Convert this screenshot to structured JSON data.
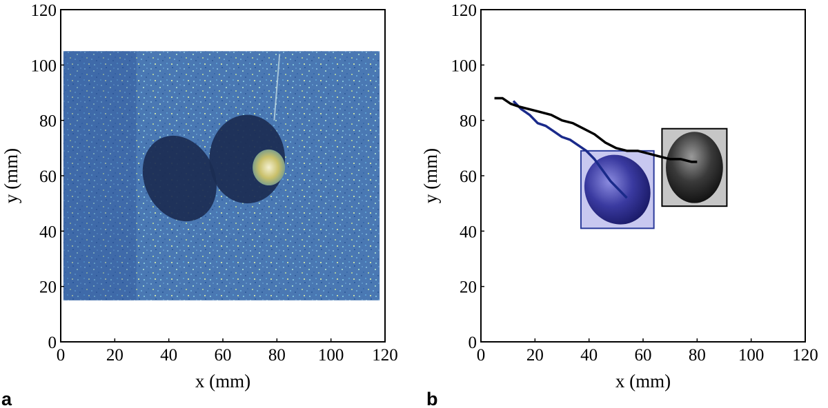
{
  "chart_data": [
    {
      "panel_label": "a",
      "type": "image",
      "xlabel": "x (mm)",
      "ylabel": "y (mm)",
      "xlim": [
        0,
        120
      ],
      "ylim": [
        0,
        120
      ],
      "xticks": [
        0,
        20,
        40,
        60,
        80,
        100,
        120
      ],
      "yticks": [
        0,
        20,
        40,
        60,
        80,
        100,
        120
      ],
      "image_extent": {
        "x": [
          1,
          118
        ],
        "y": [
          15,
          105
        ]
      },
      "objects": [
        {
          "name": "left-bubble",
          "center": [
            44,
            59
          ],
          "radii": [
            13,
            16
          ],
          "rotation_deg": -25
        },
        {
          "name": "right-bubble",
          "center": [
            69,
            66
          ],
          "radii": [
            14,
            16
          ],
          "rotation_deg": 0
        },
        {
          "name": "bright-particle",
          "center": [
            77,
            63
          ],
          "radii": [
            6,
            6.5
          ],
          "rotation_deg": 0
        }
      ],
      "colors": {
        "background": "#4a78b3",
        "bubble": "#1b2c52",
        "particle": "#d8c268"
      }
    },
    {
      "panel_label": "b",
      "type": "line",
      "xlabel": "x (mm)",
      "ylabel": "y (mm)",
      "xlim": [
        0,
        120
      ],
      "ylim": [
        0,
        120
      ],
      "xticks": [
        0,
        20,
        40,
        60,
        80,
        100,
        120
      ],
      "yticks": [
        0,
        20,
        40,
        60,
        80,
        100,
        120
      ],
      "series": [
        {
          "name": "blue-trajectory",
          "color": "#1a2a8a",
          "x": [
            12,
            15,
            18,
            21,
            24,
            27,
            30,
            33,
            36,
            39,
            42,
            45,
            48,
            51,
            54
          ],
          "y": [
            87,
            84,
            82,
            79,
            78,
            76,
            74,
            73,
            71,
            69,
            66,
            62,
            58,
            55,
            52
          ]
        },
        {
          "name": "black-trajectory",
          "color": "#000000",
          "x": [
            5,
            8,
            11,
            14,
            18,
            22,
            26,
            30,
            34,
            38,
            42,
            46,
            50,
            54,
            58,
            62,
            66,
            70,
            74,
            78,
            80
          ],
          "y": [
            88,
            88,
            86,
            85,
            84,
            83,
            82,
            80,
            79,
            77,
            75,
            72,
            70,
            69,
            69,
            68,
            67,
            66,
            66,
            65,
            65
          ]
        }
      ],
      "insets": [
        {
          "name": "blue-box",
          "x": [
            37,
            64
          ],
          "y": [
            41,
            69
          ],
          "color": "#2a3a9a",
          "fill": "#c8c8f0"
        },
        {
          "name": "black-box",
          "x": [
            67,
            91
          ],
          "y": [
            49,
            77
          ],
          "color": "#000000",
          "fill": "#c6c6c6"
        }
      ]
    }
  ]
}
